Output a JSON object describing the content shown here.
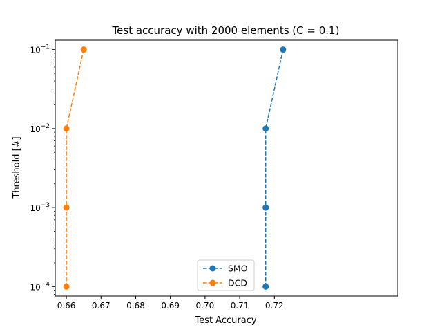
{
  "chart_data": {
    "type": "line",
    "title": "Test accuracy with 2000 elements (C = 0.1)",
    "xlabel": "Test Accuracy",
    "ylabel": "Threshold [#]",
    "xlim": [
      0.6568,
      0.7556
    ],
    "ylim": [
      7.59e-05,
      0.1317
    ],
    "x_scale": "linear",
    "y_scale": "log",
    "x_ticks": [
      0.66,
      0.67,
      0.68,
      0.69,
      0.7,
      0.71,
      0.72
    ],
    "x_tick_labels": [
      "0.66",
      "0.67",
      "0.68",
      "0.69",
      "0.70",
      "0.71",
      "0.72"
    ],
    "y_ticks": [
      {
        "value": 0.0001,
        "base": "10",
        "exp": "−4"
      },
      {
        "value": 0.001,
        "base": "10",
        "exp": "−3"
      },
      {
        "value": 0.01,
        "base": "10",
        "exp": "−2"
      },
      {
        "value": 0.1,
        "base": "10",
        "exp": "−1"
      }
    ],
    "grid": false,
    "legend": "lower center",
    "series": [
      {
        "name": "SMO",
        "color": "#1f77b4",
        "linestyle": "dashed",
        "marker": "circle",
        "points": [
          {
            "x": 0.7175,
            "y": 0.0001
          },
          {
            "x": 0.7175,
            "y": 0.001
          },
          {
            "x": 0.7175,
            "y": 0.01
          },
          {
            "x": 0.7225,
            "y": 0.1
          }
        ]
      },
      {
        "name": "DCD",
        "color": "#ff7f0e",
        "linestyle": "dashed",
        "marker": "circle",
        "points": [
          {
            "x": 0.66,
            "y": 0.0001
          },
          {
            "x": 0.66,
            "y": 0.001
          },
          {
            "x": 0.66,
            "y": 0.01
          },
          {
            "x": 0.665,
            "y": 0.1
          }
        ]
      }
    ]
  }
}
